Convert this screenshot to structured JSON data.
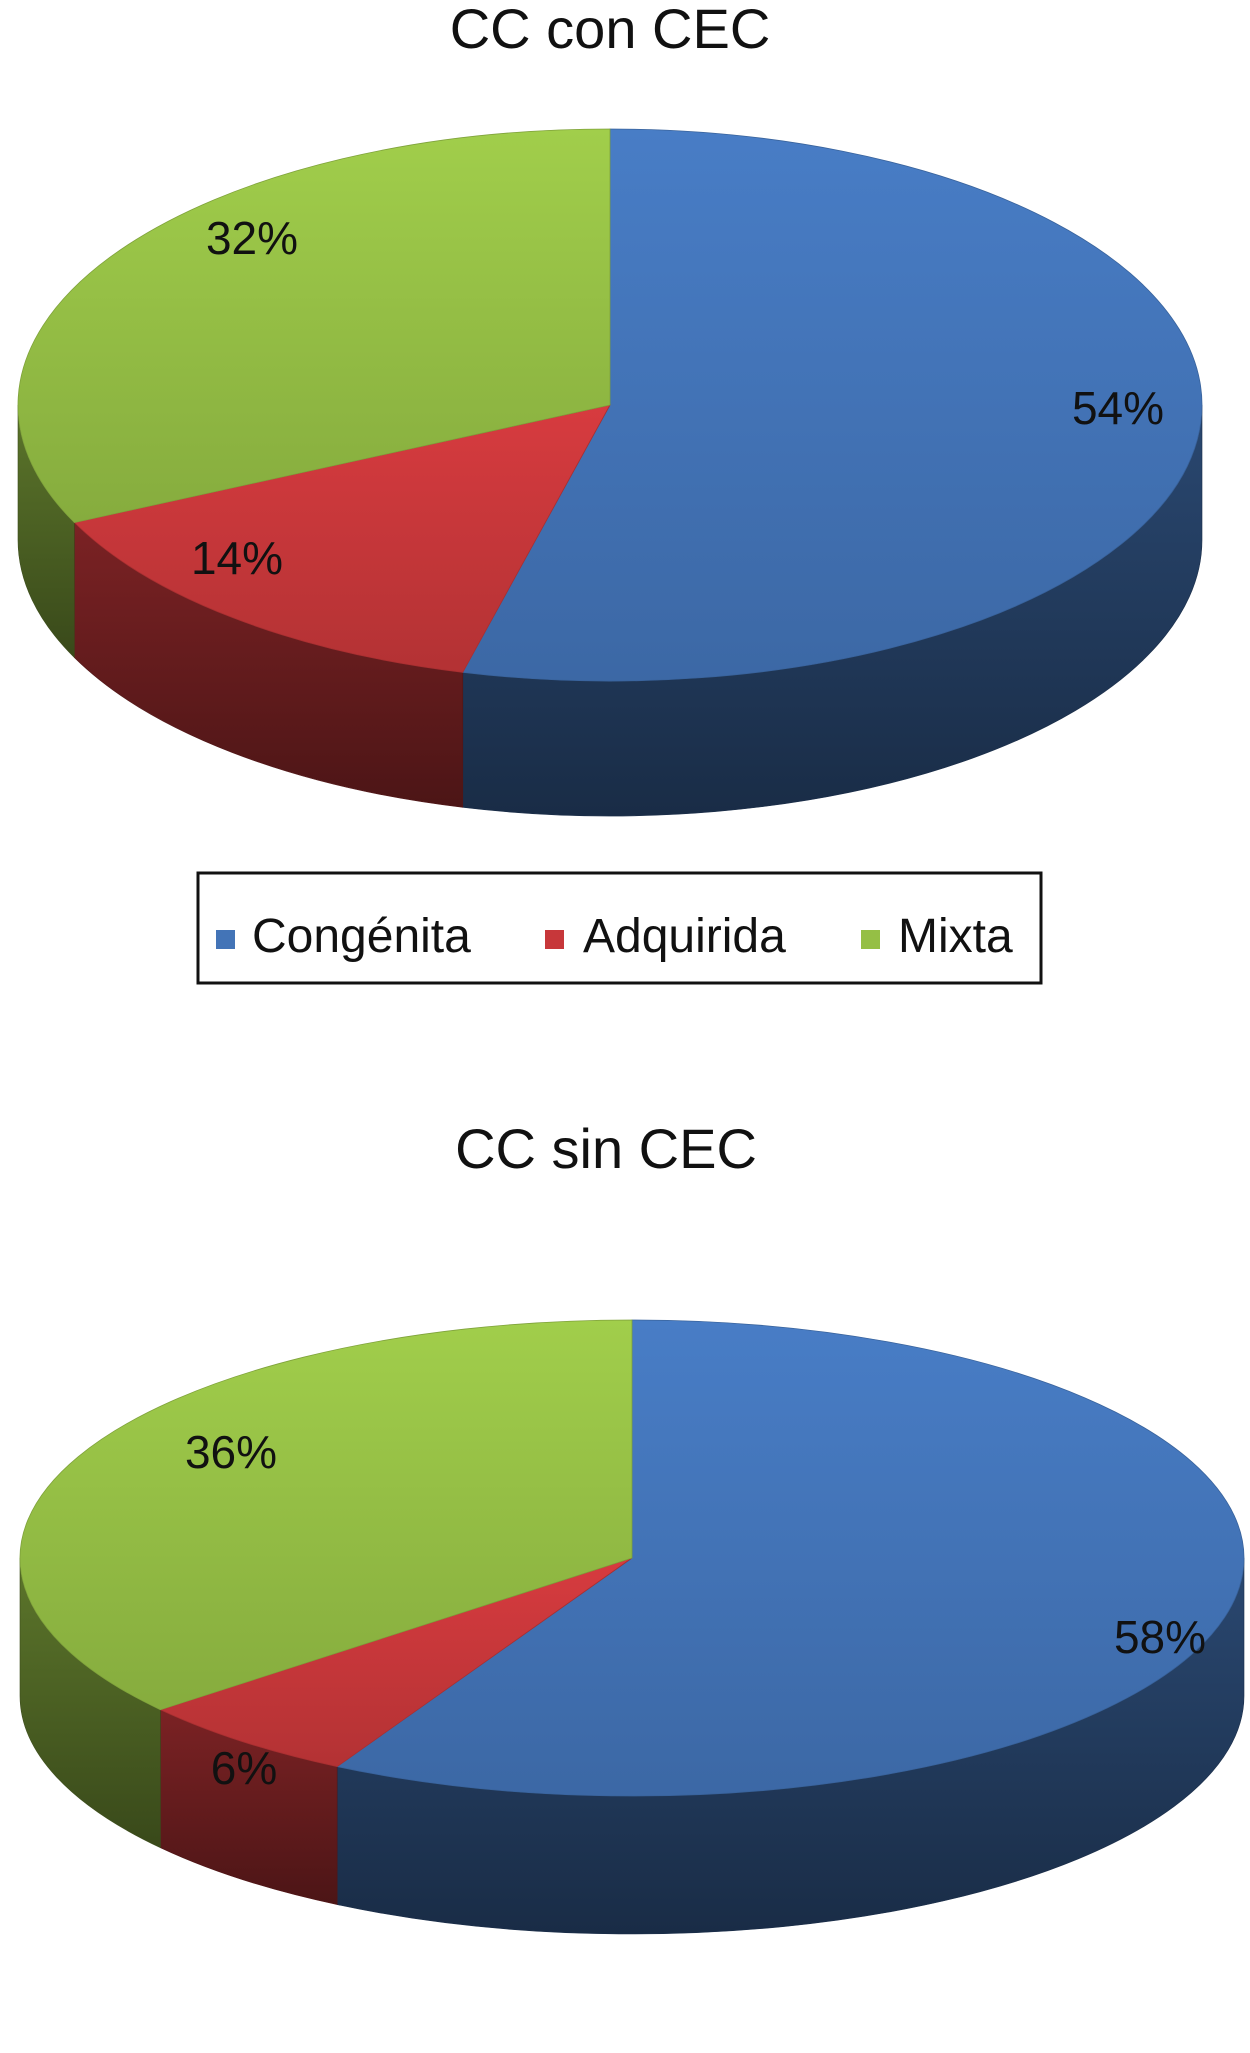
{
  "colors": {
    "congenita": "#4374b7",
    "adquirida": "#c7373a",
    "mixta": "#95bf45"
  },
  "legend": {
    "items": [
      {
        "label": "Congénita",
        "color_key": "congenita"
      },
      {
        "label": "Adquirida",
        "color_key": "adquirida"
      },
      {
        "label": "Mixta",
        "color_key": "mixta"
      }
    ],
    "placement": "between charts"
  },
  "chart_data": [
    {
      "type": "pie",
      "style": "3d",
      "title": "CC con CEC",
      "categories": [
        "Congénita",
        "Adquirida",
        "Mixta"
      ],
      "values": [
        54,
        14,
        32
      ],
      "labels": [
        "54%",
        "14%",
        "32%"
      ],
      "unit": "%"
    },
    {
      "type": "pie",
      "style": "3d",
      "title": "CC sin CEC",
      "categories": [
        "Congénita",
        "Adquirida",
        "Mixta"
      ],
      "values": [
        58,
        6,
        36
      ],
      "labels": [
        "58%",
        "6%",
        "36%"
      ],
      "unit": "%"
    }
  ]
}
